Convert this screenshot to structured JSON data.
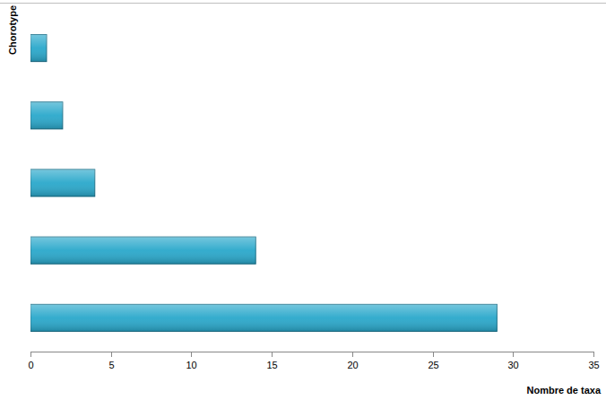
{
  "chart_data": {
    "type": "bar",
    "orientation": "horizontal",
    "x_label": "Nombre de taxa",
    "y_label": "Chorotype",
    "categories": [
      null,
      null,
      null,
      null,
      null
    ],
    "values": [
      1,
      2,
      4,
      14,
      29
    ],
    "color": "#2aa8cb",
    "xlim": [
      0,
      35
    ],
    "xticks": [
      0,
      5,
      10,
      15,
      20,
      25,
      30,
      35
    ],
    "grid": false
  }
}
